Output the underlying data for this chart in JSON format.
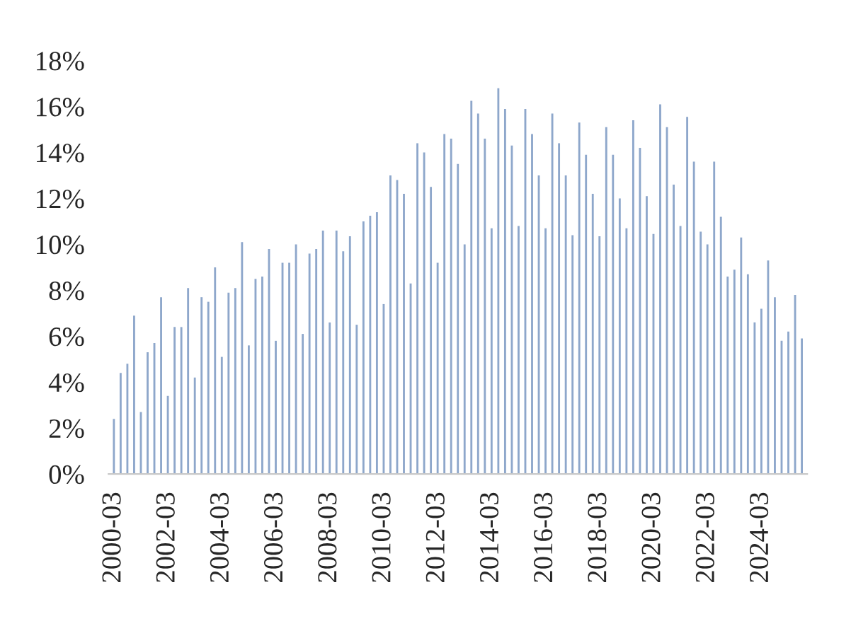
{
  "chart_data": {
    "type": "bar",
    "categories": [
      "2000-03",
      null,
      null,
      null,
      null,
      null,
      null,
      null,
      "2002-03",
      null,
      null,
      null,
      null,
      null,
      null,
      null,
      "2004-03",
      null,
      null,
      null,
      null,
      null,
      null,
      null,
      "2006-03",
      null,
      null,
      null,
      null,
      null,
      null,
      null,
      "2008-03",
      null,
      null,
      null,
      null,
      null,
      null,
      null,
      "2010-03",
      null,
      null,
      null,
      null,
      null,
      null,
      null,
      "2012-03",
      null,
      null,
      null,
      null,
      null,
      null,
      null,
      "2014-03",
      null,
      null,
      null,
      null,
      null,
      null,
      null,
      "2016-03",
      null,
      null,
      null,
      null,
      null,
      null,
      null,
      "2018-03",
      null,
      null,
      null,
      null,
      null,
      null,
      null,
      "2020-03",
      null,
      null,
      null,
      null,
      null,
      null,
      null,
      "2022-03",
      null,
      null,
      null,
      null,
      null,
      null,
      null,
      "2024-03",
      null,
      null,
      null,
      null,
      null,
      null
    ],
    "values": [
      2.4,
      4.4,
      4.8,
      6.9,
      2.7,
      5.3,
      5.7,
      7.7,
      3.4,
      6.4,
      6.4,
      8.1,
      4.2,
      7.7,
      7.5,
      9.0,
      5.1,
      7.9,
      8.1,
      10.1,
      5.6,
      8.5,
      8.6,
      9.8,
      5.8,
      9.2,
      9.2,
      10.0,
      6.1,
      9.6,
      9.8,
      10.6,
      6.6,
      10.6,
      9.7,
      10.35,
      6.5,
      11.0,
      11.25,
      11.4,
      7.4,
      13.0,
      12.8,
      12.2,
      8.3,
      14.4,
      14.0,
      12.5,
      9.2,
      14.8,
      14.6,
      13.5,
      10.0,
      16.25,
      15.7,
      14.6,
      10.7,
      16.8,
      15.9,
      14.3,
      10.8,
      15.9,
      14.8,
      13.0,
      10.7,
      15.7,
      14.4,
      13.0,
      10.4,
      15.3,
      13.9,
      12.2,
      10.35,
      15.1,
      13.9,
      12.0,
      10.7,
      15.4,
      14.2,
      12.1,
      10.45,
      16.1,
      15.1,
      12.6,
      10.8,
      15.55,
      13.6,
      10.55,
      10.0,
      13.6,
      11.2,
      8.6,
      8.9,
      10.3,
      8.7,
      6.6,
      7.2,
      9.3,
      7.7,
      5.8,
      6.2,
      7.8,
      5.9
    ],
    "color": "#8ea7cb",
    "ylim": [
      0,
      18
    ],
    "yticks": [
      {
        "value": 0,
        "label": "0%"
      },
      {
        "value": 2,
        "label": "2%"
      },
      {
        "value": 4,
        "label": "4%"
      },
      {
        "value": 6,
        "label": "6%"
      },
      {
        "value": 8,
        "label": "8%"
      },
      {
        "value": 10,
        "label": "10%"
      },
      {
        "value": 12,
        "label": "12%"
      },
      {
        "value": 14,
        "label": "14%"
      },
      {
        "value": 16,
        "label": "16%"
      },
      {
        "value": 18,
        "label": "18%"
      }
    ],
    "grid": false
  }
}
